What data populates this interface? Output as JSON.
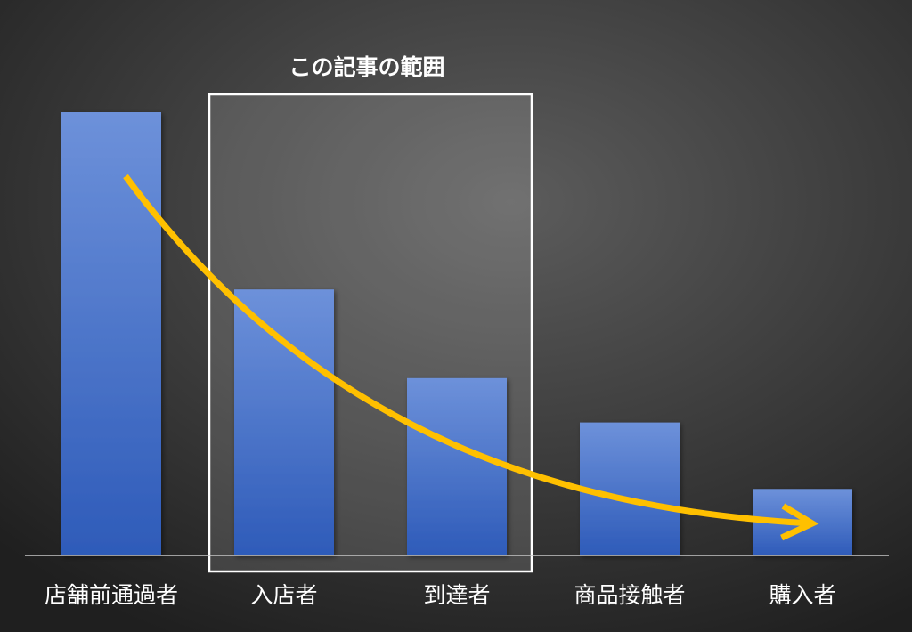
{
  "chart_data": {
    "type": "bar",
    "categories": [
      "店舗前通過者",
      "入店者",
      "到達者",
      "商品接触者",
      "購入者"
    ],
    "values": [
      100,
      60,
      40,
      30,
      15
    ],
    "ylim": [
      0,
      100
    ],
    "grid": false,
    "legend": "none",
    "annotations": [
      {
        "label": "この記事の範囲",
        "category_range": [
          1,
          2
        ]
      }
    ],
    "trend_arrow": {
      "from_index": 0,
      "to_index": 4
    }
  },
  "colors": {
    "background_center": "#5c5c5c",
    "background_edge": "#1f1f1f",
    "bar_top": "#6d91da",
    "bar_bottom": "#2e5bb9",
    "highlight_fill": "#ffffff",
    "highlight_border": "#ffffff",
    "axis_line": "#c8c8c8",
    "arrow": "#ffc000"
  }
}
